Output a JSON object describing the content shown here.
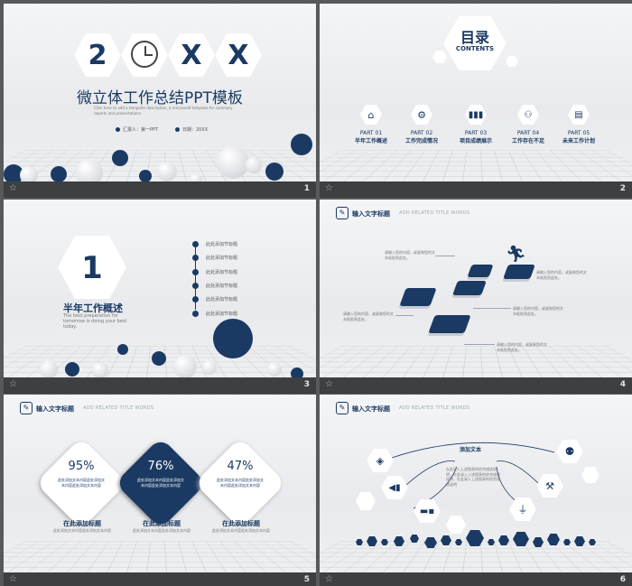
{
  "slide_numbers": [
    "1",
    "2",
    "3",
    "4",
    "5",
    "6"
  ],
  "star_icon": "☆",
  "s1": {
    "chars": [
      "2",
      "X",
      "X"
    ],
    "title": "微立体工作总结PPT模板",
    "desc": "Click here to add a template description, a microsolid template for summary reports and presentations.",
    "reporter": "汇报人：第一PPT",
    "date": "日期：20XX"
  },
  "s2": {
    "title": "目录",
    "subtitle": "CONTENTS",
    "parts": [
      {
        "part": "PART 01",
        "label": "半年工作概述",
        "icon": "home-icon"
      },
      {
        "part": "PART 02",
        "label": "工作完成情况",
        "icon": "gears-icon"
      },
      {
        "part": "PART 03",
        "label": "项目成绩展示",
        "icon": "bar-chart-icon"
      },
      {
        "part": "PART 04",
        "label": "工作存在不足",
        "icon": "people-icon"
      },
      {
        "part": "PART 05",
        "label": "未来工作计划",
        "icon": "book-icon"
      }
    ]
  },
  "s3": {
    "number": "1",
    "title": "半年工作概述",
    "desc": "The best preparation for tomorrow is doing your best today.",
    "items": [
      "此处添加节标题",
      "此处添加节标题",
      "此处添加节标题",
      "此处添加节标题",
      "此处添加节标题",
      "此处添加节标题"
    ]
  },
  "header": {
    "title": "输入文字标题",
    "sub": "ADD RELATED TITLE WORDS"
  },
  "s4": {
    "texts": [
      "请输入您的内容，或复制您的文本粘贴到此处。",
      "请输入您的内容，或复制您的文本粘贴到此处。",
      "请输入您的内容，或复制您的文本粘贴到此处。",
      "请输入您的内容，或复制您的文本粘贴到此处。",
      "请输入您的内容，或复制您的文本粘贴到此处。"
    ]
  },
  "s5": {
    "cards": [
      {
        "pct": "95%",
        "text": "此处添加文本内容此处添加文本内容此处添加文本内容",
        "title": "在此添加标题",
        "desc": "此处添加文本内容此处添加文本内容"
      },
      {
        "pct": "76%",
        "text": "此处添加文本内容此处添加文本内容此处添加文本内容",
        "title": "在此添加标题",
        "desc": "此处添加文本内容此处添加文本内容"
      },
      {
        "pct": "47%",
        "text": "此处添加文本内容此处添加文本内容此处添加文本内容",
        "title": "在此添加标题",
        "desc": "此处添加文本内容此处添加文本内容"
      }
    ]
  },
  "s6": {
    "center_title": "添加文本",
    "center_text": "在此录入上述图表的综合描述说明，在此录入上述图表的综合描述说明，在此录入上述图表的综合描述说明"
  },
  "colors": {
    "navy": "#1b3a63",
    "bg": "#58595b"
  }
}
